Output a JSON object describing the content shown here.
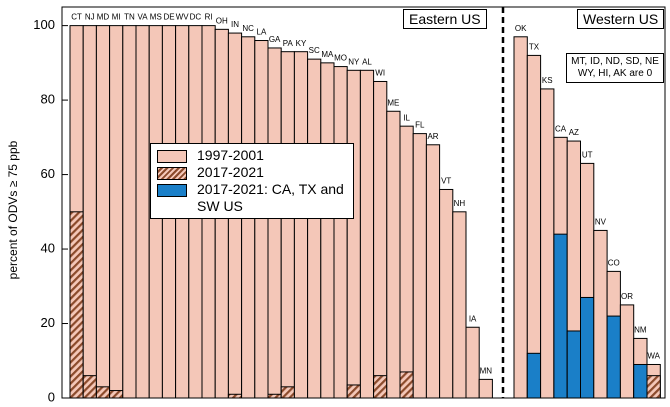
{
  "chart_data": [
    {
      "type": "bar",
      "title": "Eastern US",
      "y_label": "percent of ODVs ≥ 75 ppb",
      "categories": [
        "CT",
        "NJ",
        "MD",
        "MI",
        "TN",
        "VA",
        "MS",
        "DE",
        "WV",
        "DC",
        "RI",
        "OH",
        "IN",
        "NC",
        "LA",
        "GA",
        "PA",
        "KY",
        "SC",
        "MA",
        "MO",
        "NY",
        "AL",
        "WI",
        "ME",
        "IL",
        "FL",
        "AR",
        "VT",
        "NH",
        "IA",
        "MN"
      ],
      "series": [
        {
          "name": "1997-2001",
          "color": "#f4c7b8",
          "values": [
            100,
            100,
            100,
            100,
            100,
            100,
            100,
            100,
            100,
            100,
            100,
            99,
            98,
            97,
            96,
            94,
            93,
            93,
            91,
            90,
            89,
            88,
            88,
            85,
            77,
            73,
            71,
            68,
            56,
            50,
            19,
            5
          ]
        },
        {
          "name": "2017-2021",
          "color": "#8b4a2b",
          "pattern": "hatch",
          "values": [
            50,
            6,
            3,
            2,
            0,
            0,
            0,
            0,
            0,
            0,
            0,
            0,
            1,
            0,
            0,
            1,
            3,
            0,
            0,
            0,
            0,
            3.5,
            0,
            6,
            0,
            7,
            0,
            0,
            0,
            0,
            0,
            0
          ]
        }
      ],
      "ylim": [
        0,
        105
      ],
      "yticks": [
        0,
        20,
        40,
        60,
        80,
        100
      ]
    },
    {
      "type": "bar",
      "title": "Western US",
      "annotation": "MT, ID, ND, SD, NE WY, HI, AK are 0",
      "categories": [
        "OK",
        "TX",
        "KS",
        "CA",
        "AZ",
        "UT",
        "NV",
        "CO",
        "OR",
        "NM",
        "WA"
      ],
      "series": [
        {
          "color": "#f4c7b8",
          "values": [
            97,
            92,
            83,
            70,
            69,
            63,
            45,
            34,
            25,
            16,
            9
          ]
        },
        {
          "color": "#8b4a2b",
          "pattern": "hatch",
          "values": [
            0,
            0,
            0,
            0,
            0,
            0,
            0,
            0,
            0,
            0,
            6
          ]
        },
        {
          "name": "2017-2021: CA, TX and SW US",
          "color": "#1a7fc8",
          "values": [
            0,
            12,
            0,
            44,
            18,
            27,
            0,
            22,
            0,
            9,
            0
          ]
        }
      ],
      "ylim": [
        0,
        105
      ]
    }
  ]
}
